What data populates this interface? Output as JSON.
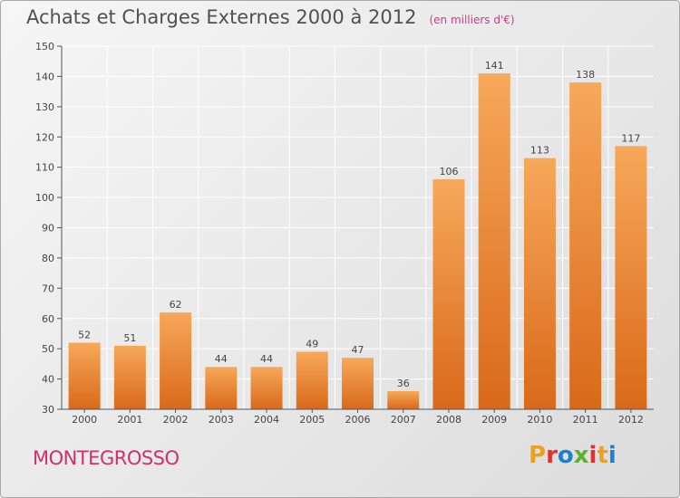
{
  "header": {
    "title": "Achats et Charges Externes 2000 à 2012",
    "subtitle": "(en milliers d'€)"
  },
  "footer": {
    "city": "MONTEGROSSO",
    "logo_text": "Proxiti",
    "logo_colors": [
      "#f0a020",
      "#e03030",
      "#2080d0",
      "#60b030",
      "#e03030",
      "#f0a020",
      "#2080d0"
    ]
  },
  "colors": {
    "bar_top": "#f7a85a",
    "bar_bottom": "#d9691a",
    "grid": "#ffffff",
    "axis": "#555555"
  },
  "chart_data": {
    "type": "bar",
    "title": "Achats et Charges Externes 2000 à 2012",
    "subtitle": "(en milliers d'€)",
    "categories": [
      "2000",
      "2001",
      "2002",
      "2003",
      "2004",
      "2005",
      "2006",
      "2007",
      "2008",
      "2009",
      "2010",
      "2011",
      "2012"
    ],
    "values": [
      52,
      51,
      62,
      44,
      44,
      49,
      47,
      36,
      106,
      141,
      113,
      138,
      117
    ],
    "ylim": [
      30,
      150
    ],
    "yticks": [
      30,
      40,
      50,
      60,
      70,
      80,
      90,
      100,
      110,
      120,
      130,
      140,
      150
    ],
    "xlabel": "",
    "ylabel": "",
    "grid": true,
    "data_labels": true
  }
}
